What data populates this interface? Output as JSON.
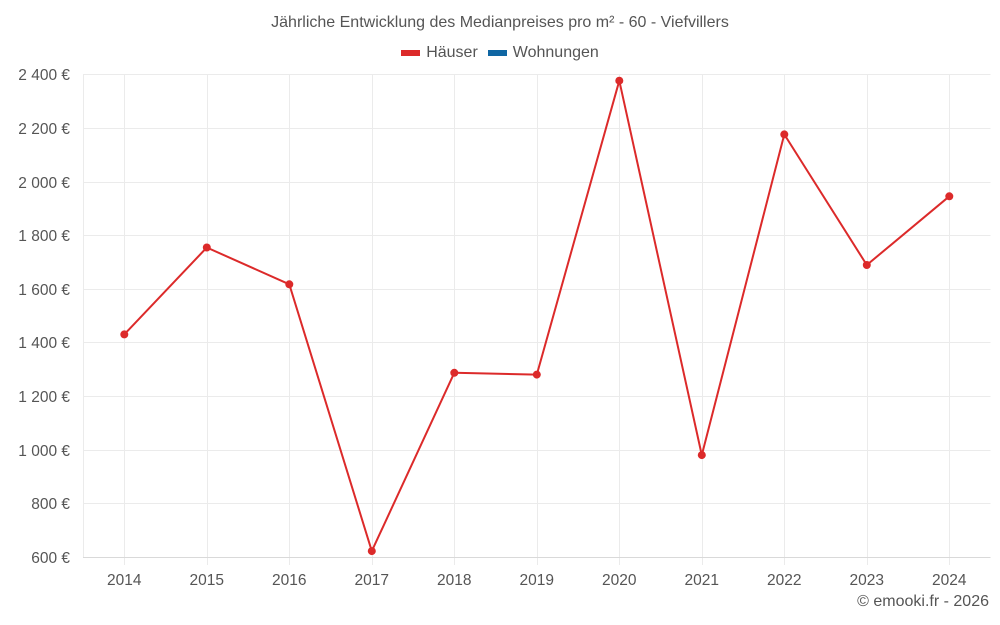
{
  "title": "Jährliche Entwicklung des Medianpreises pro m² - 60 - Viefvillers",
  "legend": [
    {
      "label": "Häuser",
      "color": "#dc2a2a"
    },
    {
      "label": "Wohnungen",
      "color": "#0f66a3"
    }
  ],
  "footer": "© emooki.fr - 2026",
  "chart_data": {
    "type": "line",
    "title": "Jährliche Entwicklung des Medianpreises pro m² - 60 - Viefvillers",
    "xlabel": "",
    "ylabel": "",
    "categories": [
      "2014",
      "2015",
      "2016",
      "2017",
      "2018",
      "2019",
      "2020",
      "2021",
      "2022",
      "2023",
      "2024"
    ],
    "series": [
      {
        "name": "Häuser",
        "color": "#dc2a2a",
        "values": [
          1430,
          1754,
          1617,
          622,
          1287,
          1280,
          2376,
          980,
          2176,
          1689,
          1945
        ]
      },
      {
        "name": "Wohnungen",
        "color": "#0f66a3",
        "values": []
      }
    ],
    "ylim": [
      600,
      2400
    ],
    "yticks": [
      600,
      800,
      1000,
      1200,
      1400,
      1600,
      1800,
      2000,
      2200,
      2400
    ],
    "ytick_labels": [
      "600 €",
      "800 €",
      "1 000 €",
      "1 200 €",
      "1 400 €",
      "1 600 €",
      "1 800 €",
      "2 000 €",
      "2 200 €",
      "2 400 €"
    ],
    "grid": true,
    "legend_position": "top"
  }
}
